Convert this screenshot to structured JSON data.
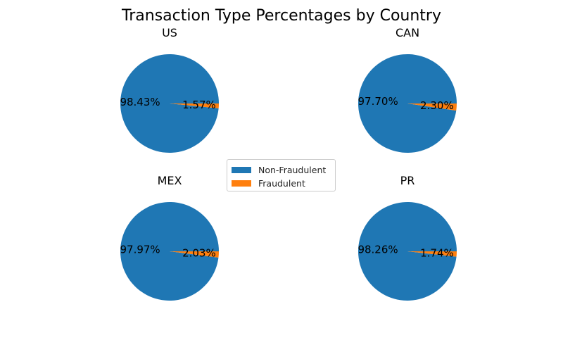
{
  "chart_data": {
    "type": "pie",
    "title": "Transaction Type Percentages by Country",
    "categories": [
      "Non-Fraudulent",
      "Fraudulent"
    ],
    "colors": [
      "#1f77b4",
      "#ff7f0e"
    ],
    "legend_position": "center",
    "pies": [
      {
        "name": "US",
        "values": [
          98.43,
          1.57
        ],
        "labels": [
          "98.43%",
          "1.57%"
        ]
      },
      {
        "name": "CAN",
        "values": [
          97.7,
          2.3
        ],
        "labels": [
          "97.70%",
          "2.30%"
        ]
      },
      {
        "name": "MEX",
        "values": [
          97.97,
          2.03
        ],
        "labels": [
          "97.97%",
          "2.03%"
        ]
      },
      {
        "name": "PR",
        "values": [
          98.26,
          1.74
        ],
        "labels": [
          "98.26%",
          "1.74%"
        ]
      }
    ]
  }
}
